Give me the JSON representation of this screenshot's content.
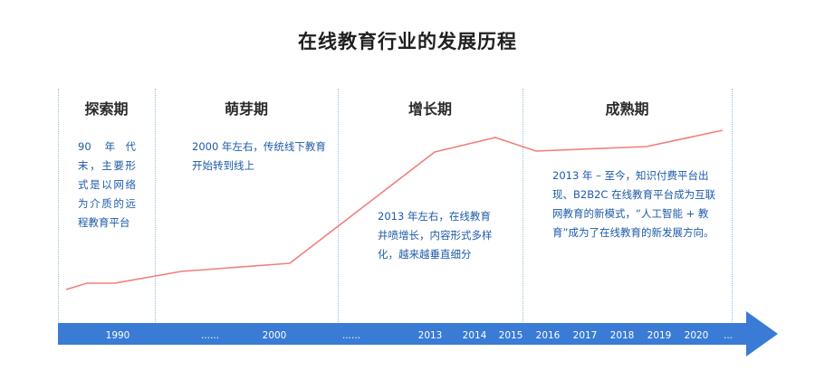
{
  "title": "在线教育行业的发展历程",
  "phases": [
    {
      "name": "探索期",
      "desc": "90 年代末，主要形式是以网络为介质的远程教育平台"
    },
    {
      "name": "萌芽期",
      "desc": "2000 年左右，传统线下教育开始转到线上"
    },
    {
      "name": "增长期",
      "desc": "2013 年左右，在线教育井喷增长，内容形式多样化，越来越垂直细分"
    },
    {
      "name": "成熟期",
      "desc": "2013 年 – 至今，知识付费平台出现、B2B2C 在线教育平台成为互联网教育的新模式，“人工智能 + 教育”成为了在线教育的新发展方向。"
    }
  ],
  "timeline": {
    "labels": [
      "1990",
      "......",
      "2000",
      "......",
      "2013",
      "2014",
      "2015",
      "2016",
      "2017",
      "2018",
      "2019",
      "2020",
      "..."
    ]
  },
  "colors": {
    "line": "#f07f7f",
    "arrow": "#3a7bd5",
    "desc_text": "#1e5ba8"
  }
}
